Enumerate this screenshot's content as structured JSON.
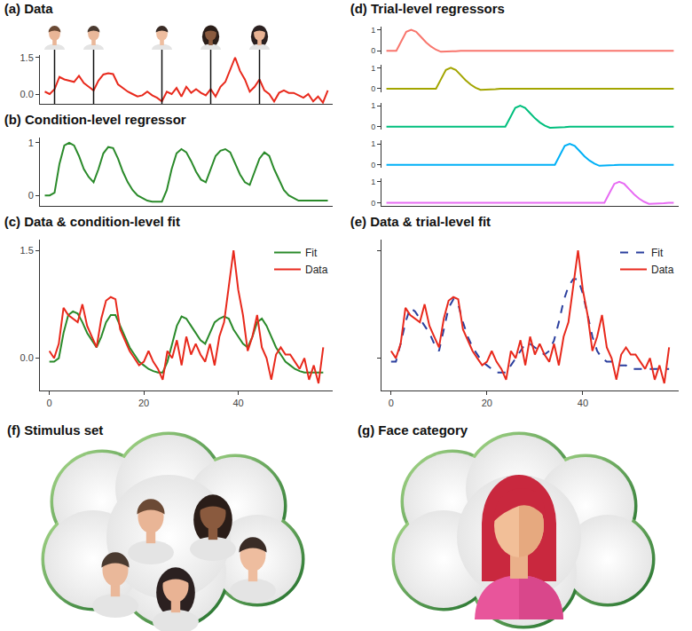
{
  "chart_data": [
    {
      "type": "line",
      "title": "(a) Data",
      "x": [
        0,
        1,
        2,
        3,
        4,
        5,
        6,
        7,
        8,
        9,
        10,
        11,
        12,
        13,
        14,
        15,
        16,
        17,
        18,
        19,
        20,
        21,
        22,
        23,
        24,
        25,
        26,
        27,
        28,
        29,
        30,
        31,
        32,
        33,
        34,
        35,
        36,
        37,
        38,
        39,
        40,
        41,
        42,
        43,
        44,
        45,
        46,
        47,
        48,
        49,
        50,
        51,
        52,
        53,
        54,
        55,
        56,
        57,
        58
      ],
      "series": [
        {
          "color": "#e8291c",
          "values": [
            0.1,
            0.0,
            0.2,
            0.7,
            0.6,
            0.55,
            0.5,
            0.75,
            0.45,
            0.3,
            0.15,
            0.55,
            0.8,
            0.85,
            0.82,
            0.4,
            0.25,
            0.1,
            0.0,
            -0.1,
            -0.05,
            0.1,
            -0.05,
            -0.15,
            -0.3,
            0.1,
            0.0,
            0.25,
            -0.1,
            0.3,
            0.05,
            0.2,
            0.05,
            -0.05,
            0.2,
            -0.1,
            0.3,
            0.5,
            1.0,
            1.5,
            0.95,
            0.6,
            0.1,
            0.3,
            0.6,
            0.15,
            0.0,
            -0.3,
            0.05,
            0.15,
            0.05,
            0.05,
            -0.05,
            -0.15,
            0.0,
            -0.3,
            -0.1,
            -0.35,
            0.15
          ]
        }
      ],
      "onsets": [
        2,
        10,
        24,
        34,
        44
      ],
      "xlim": [
        -1,
        59
      ],
      "ylim": [
        -0.4,
        1.6
      ],
      "yticks": [
        {
          "value": 0,
          "label": "0.0"
        },
        {
          "value": 1.5,
          "label": "1.5"
        }
      ],
      "tick_labels": "y"
    },
    {
      "type": "line",
      "title": "(b) Condition-level regressor",
      "x": [
        0,
        1,
        2,
        3,
        4,
        5,
        6,
        7,
        8,
        9,
        10,
        11,
        12,
        13,
        14,
        15,
        16,
        17,
        18,
        19,
        20,
        21,
        22,
        23,
        24,
        25,
        26,
        27,
        28,
        29,
        30,
        31,
        32,
        33,
        34,
        35,
        36,
        37,
        38,
        39,
        40,
        41,
        42,
        43,
        44,
        45,
        46,
        47,
        48,
        49,
        50,
        51,
        52,
        53,
        54,
        55,
        56,
        57,
        58
      ],
      "series": [
        {
          "color": "#2a8a2a",
          "values": [
            0,
            0,
            0.05,
            0.6,
            0.95,
            1.0,
            0.95,
            0.75,
            0.5,
            0.35,
            0.25,
            0.5,
            0.8,
            0.92,
            0.9,
            0.7,
            0.45,
            0.25,
            0.1,
            0.0,
            -0.05,
            -0.1,
            -0.12,
            -0.12,
            -0.12,
            0.1,
            0.5,
            0.8,
            0.88,
            0.82,
            0.65,
            0.45,
            0.3,
            0.25,
            0.5,
            0.75,
            0.85,
            0.88,
            0.82,
            0.6,
            0.4,
            0.25,
            0.2,
            0.45,
            0.7,
            0.82,
            0.75,
            0.5,
            0.3,
            0.1,
            0.0,
            -0.05,
            -0.1,
            -0.1,
            -0.1,
            -0.1,
            -0.1,
            -0.1,
            -0.1
          ]
        }
      ],
      "xlim": [
        -1,
        59
      ],
      "ylim": [
        -0.2,
        1.1
      ],
      "yticks": [
        0,
        1
      ],
      "tick_labels": "y"
    },
    {
      "type": "line",
      "title": "(c) Data & condition-level fit",
      "x": [
        0,
        1,
        2,
        3,
        4,
        5,
        6,
        7,
        8,
        9,
        10,
        11,
        12,
        13,
        14,
        15,
        16,
        17,
        18,
        19,
        20,
        21,
        22,
        23,
        24,
        25,
        26,
        27,
        28,
        29,
        30,
        31,
        32,
        33,
        34,
        35,
        36,
        37,
        38,
        39,
        40,
        41,
        42,
        43,
        44,
        45,
        46,
        47,
        48,
        49,
        50,
        51,
        52,
        53,
        54,
        55,
        56,
        57,
        58
      ],
      "series": [
        {
          "name": "Fit",
          "color": "#2a8a2a",
          "values": [
            -0.05,
            -0.05,
            0.0,
            0.35,
            0.6,
            0.65,
            0.62,
            0.5,
            0.35,
            0.25,
            0.15,
            0.3,
            0.5,
            0.6,
            0.6,
            0.45,
            0.3,
            0.15,
            0.05,
            -0.05,
            -0.1,
            -0.15,
            -0.18,
            -0.2,
            -0.2,
            -0.05,
            0.2,
            0.45,
            0.58,
            0.55,
            0.45,
            0.35,
            0.25,
            0.2,
            0.35,
            0.5,
            0.55,
            0.58,
            0.55,
            0.4,
            0.3,
            0.2,
            0.15,
            0.3,
            0.5,
            0.55,
            0.45,
            0.3,
            0.15,
            0.05,
            -0.05,
            -0.1,
            -0.15,
            -0.18,
            -0.2,
            -0.2,
            -0.2,
            -0.2,
            -0.2
          ]
        },
        {
          "name": "Data",
          "color": "#e8291c",
          "values": [
            0.1,
            0.0,
            0.2,
            0.7,
            0.6,
            0.55,
            0.5,
            0.75,
            0.45,
            0.3,
            0.15,
            0.55,
            0.8,
            0.85,
            0.82,
            0.4,
            0.25,
            0.1,
            0.0,
            -0.1,
            -0.05,
            0.1,
            -0.05,
            -0.15,
            -0.3,
            0.1,
            0.0,
            0.25,
            -0.1,
            0.3,
            0.05,
            0.2,
            0.05,
            -0.05,
            0.2,
            -0.1,
            0.3,
            0.5,
            1.0,
            1.5,
            0.95,
            0.6,
            0.1,
            0.3,
            0.6,
            0.15,
            0.0,
            -0.3,
            0.05,
            0.15,
            0.05,
            0.05,
            -0.05,
            -0.15,
            0.0,
            -0.3,
            -0.1,
            -0.35,
            0.15
          ]
        }
      ],
      "xlim": [
        -2,
        60
      ],
      "ylim": [
        -0.45,
        1.65
      ],
      "xticks": [
        0,
        20,
        40
      ],
      "yticks": [
        {
          "value": 0,
          "label": "0.0"
        },
        {
          "value": 1.5,
          "label": "1.5"
        }
      ],
      "legend": "top right"
    },
    {
      "type": "facets",
      "title": "(d) Trial-level regressors",
      "x": [
        0,
        1,
        2,
        3,
        4,
        5,
        6,
        7,
        8,
        9,
        10,
        11,
        12,
        13,
        14,
        15,
        16,
        17,
        18,
        19,
        20,
        21,
        22,
        23,
        24,
        25,
        26,
        27,
        28,
        29,
        30,
        31,
        32,
        33,
        34,
        35,
        36,
        37,
        38,
        39,
        40,
        41,
        42,
        43,
        44,
        45,
        46,
        47,
        48,
        49,
        50,
        51,
        52,
        53,
        54,
        55,
        56,
        57,
        58
      ],
      "series": [
        {
          "color": "#f8766d",
          "values": [
            0,
            0,
            0,
            0.45,
            0.9,
            1,
            0.9,
            0.65,
            0.4,
            0.2,
            0.05,
            -0.05,
            -0.05,
            -0.03,
            -0.02,
            0,
            0,
            0,
            0,
            0,
            0,
            0,
            0,
            0,
            0,
            0,
            0,
            0,
            0,
            0,
            0,
            0,
            0,
            0,
            0,
            0,
            0,
            0,
            0,
            0,
            0,
            0,
            0,
            0,
            0,
            0,
            0,
            0,
            0,
            0,
            0,
            0,
            0,
            0,
            0,
            0,
            0,
            0,
            0
          ]
        },
        {
          "color": "#a3a500",
          "values": [
            0,
            0,
            0,
            0,
            0,
            0,
            0,
            0,
            0,
            0,
            0,
            0.45,
            0.9,
            1,
            0.9,
            0.65,
            0.4,
            0.2,
            0.05,
            -0.05,
            -0.05,
            -0.03,
            -0.02,
            0,
            0,
            0,
            0,
            0,
            0,
            0,
            0,
            0,
            0,
            0,
            0,
            0,
            0,
            0,
            0,
            0,
            0,
            0,
            0,
            0,
            0,
            0,
            0,
            0,
            0,
            0,
            0,
            0,
            0,
            0,
            0,
            0,
            0,
            0,
            0
          ]
        },
        {
          "color": "#00bf7d",
          "values": [
            0,
            0,
            0,
            0,
            0,
            0,
            0,
            0,
            0,
            0,
            0,
            0,
            0,
            0,
            0,
            0,
            0,
            0,
            0,
            0,
            0,
            0,
            0,
            0,
            0,
            0.45,
            0.9,
            1,
            0.9,
            0.65,
            0.4,
            0.2,
            0.05,
            -0.05,
            -0.05,
            -0.03,
            -0.02,
            0,
            0,
            0,
            0,
            0,
            0,
            0,
            0,
            0,
            0,
            0,
            0,
            0,
            0,
            0,
            0,
            0,
            0,
            0,
            0,
            0,
            0
          ]
        },
        {
          "color": "#00b0f6",
          "values": [
            0,
            0,
            0,
            0,
            0,
            0,
            0,
            0,
            0,
            0,
            0,
            0,
            0,
            0,
            0,
            0,
            0,
            0,
            0,
            0,
            0,
            0,
            0,
            0,
            0,
            0,
            0,
            0,
            0,
            0,
            0,
            0,
            0,
            0,
            0,
            0.45,
            0.9,
            1,
            0.9,
            0.65,
            0.4,
            0.2,
            0.05,
            -0.05,
            -0.05,
            -0.03,
            -0.02,
            0,
            0,
            0,
            0,
            0,
            0,
            0,
            0,
            0,
            0,
            0,
            0
          ]
        },
        {
          "color": "#e76bf3",
          "values": [
            0,
            0,
            0,
            0,
            0,
            0,
            0,
            0,
            0,
            0,
            0,
            0,
            0,
            0,
            0,
            0,
            0,
            0,
            0,
            0,
            0,
            0,
            0,
            0,
            0,
            0,
            0,
            0,
            0,
            0,
            0,
            0,
            0,
            0,
            0,
            0,
            0,
            0,
            0,
            0,
            0,
            0,
            0,
            0,
            0,
            0.45,
            0.9,
            1,
            0.9,
            0.65,
            0.4,
            0.2,
            0.05,
            -0.05,
            -0.05,
            -0.03,
            -0.02,
            0,
            0
          ]
        }
      ],
      "xlim": [
        -1,
        59
      ],
      "ylim": [
        -0.15,
        1.15
      ],
      "yticks": [
        0,
        1
      ],
      "tick_labels": "y"
    },
    {
      "type": "line",
      "title": "(e) Data & trial-level fit",
      "x": [
        0,
        1,
        2,
        3,
        4,
        5,
        6,
        7,
        8,
        9,
        10,
        11,
        12,
        13,
        14,
        15,
        16,
        17,
        18,
        19,
        20,
        21,
        22,
        23,
        24,
        25,
        26,
        27,
        28,
        29,
        30,
        31,
        32,
        33,
        34,
        35,
        36,
        37,
        38,
        39,
        40,
        41,
        42,
        43,
        44,
        45,
        46,
        47,
        48,
        49,
        50,
        51,
        52,
        53,
        54,
        55,
        56,
        57,
        58
      ],
      "series": [
        {
          "name": "Fit",
          "color": "#2b3f9e",
          "line_style": "dash",
          "values": [
            -0.05,
            -0.05,
            0.2,
            0.5,
            0.7,
            0.65,
            0.55,
            0.45,
            0.35,
            0.2,
            0.1,
            0.4,
            0.7,
            0.82,
            0.75,
            0.5,
            0.3,
            0.15,
            0.05,
            -0.05,
            -0.1,
            -0.15,
            -0.2,
            -0.2,
            -0.2,
            -0.1,
            0.0,
            0.1,
            0.2,
            0.2,
            0.15,
            0.1,
            0.05,
            0.1,
            0.25,
            0.5,
            0.8,
            1.0,
            1.1,
            1.1,
            0.9,
            0.6,
            0.3,
            0.1,
            0.0,
            -0.05,
            -0.05,
            -0.1,
            -0.1,
            -0.1,
            -0.15,
            -0.15,
            -0.15,
            -0.15,
            -0.15,
            -0.15,
            -0.15,
            -0.15,
            -0.15
          ]
        },
        {
          "name": "Data",
          "color": "#e8291c",
          "values": [
            0.1,
            0.0,
            0.2,
            0.7,
            0.6,
            0.55,
            0.5,
            0.75,
            0.45,
            0.3,
            0.15,
            0.55,
            0.8,
            0.85,
            0.82,
            0.4,
            0.25,
            0.1,
            0.0,
            -0.1,
            -0.05,
            0.1,
            -0.05,
            -0.15,
            -0.3,
            0.1,
            0.0,
            0.25,
            -0.1,
            0.3,
            0.05,
            0.2,
            0.05,
            -0.05,
            0.2,
            -0.1,
            0.3,
            0.5,
            1.0,
            1.5,
            0.95,
            0.6,
            0.1,
            0.3,
            0.6,
            0.15,
            0.0,
            -0.3,
            0.05,
            0.15,
            0.05,
            0.05,
            -0.05,
            -0.15,
            0.0,
            -0.3,
            -0.1,
            -0.35,
            0.15
          ]
        }
      ],
      "xlim": [
        -2,
        60
      ],
      "ylim": [
        -0.45,
        1.65
      ],
      "xticks": [
        0,
        20,
        40
      ],
      "yticks": [
        0,
        1.5
      ],
      "tick_labels": "x",
      "legend": "top right"
    }
  ],
  "illustrations": [
    {
      "title": "(f) Stimulus set"
    },
    {
      "title": "(g) Face category"
    }
  ]
}
